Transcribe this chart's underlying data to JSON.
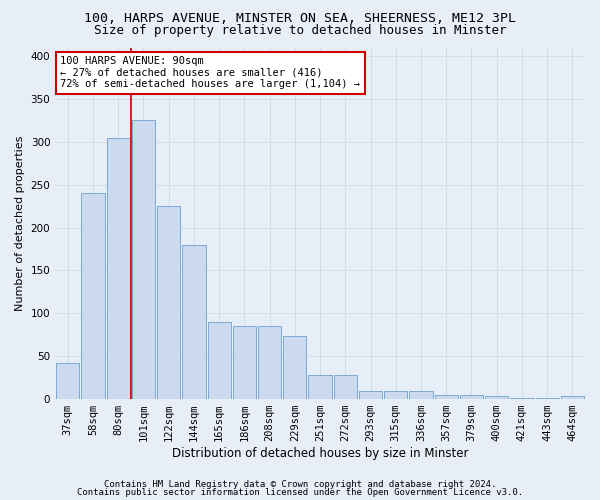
{
  "title1": "100, HARPS AVENUE, MINSTER ON SEA, SHEERNESS, ME12 3PL",
  "title2": "Size of property relative to detached houses in Minster",
  "xlabel": "Distribution of detached houses by size in Minster",
  "ylabel": "Number of detached properties",
  "categories": [
    "37sqm",
    "58sqm",
    "80sqm",
    "101sqm",
    "122sqm",
    "144sqm",
    "165sqm",
    "186sqm",
    "208sqm",
    "229sqm",
    "251sqm",
    "272sqm",
    "293sqm",
    "315sqm",
    "336sqm",
    "357sqm",
    "379sqm",
    "400sqm",
    "421sqm",
    "443sqm",
    "464sqm"
  ],
  "values": [
    42,
    240,
    305,
    325,
    225,
    180,
    90,
    85,
    85,
    73,
    28,
    28,
    10,
    10,
    10,
    5,
    5,
    4,
    1,
    1,
    4
  ],
  "bar_color": "#ccdaf0",
  "bar_edge_color": "#7aaad4",
  "grid_color": "#d4dcea",
  "annotation_line1": "100 HARPS AVENUE: 90sqm",
  "annotation_line2": "← 27% of detached houses are smaller (416)",
  "annotation_line3": "72% of semi-detached houses are larger (1,104) →",
  "annotation_box_color": "#ffffff",
  "annotation_box_edge": "#cc0000",
  "vline_color": "#cc0000",
  "vline_x": 2.5,
  "ylim": [
    0,
    410
  ],
  "yticks": [
    0,
    50,
    100,
    150,
    200,
    250,
    300,
    350,
    400
  ],
  "footnote1": "Contains HM Land Registry data © Crown copyright and database right 2024.",
  "footnote2": "Contains public sector information licensed under the Open Government Licence v3.0.",
  "background_color": "#e8eef8",
  "title1_fontsize": 9.5,
  "title2_fontsize": 9,
  "xlabel_fontsize": 8.5,
  "ylabel_fontsize": 8,
  "tick_fontsize": 7.5,
  "annot_fontsize": 7.5,
  "footnote_fontsize": 6.5
}
